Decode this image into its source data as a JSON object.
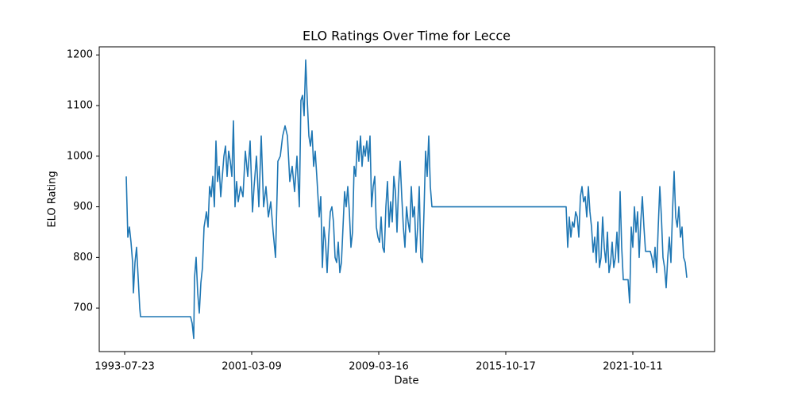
{
  "chart_data": {
    "type": "line",
    "title": "ELO Ratings Over Time for Lecce",
    "xlabel": "Date",
    "ylabel": "ELO Rating",
    "color": "#1f77b4",
    "x": [
      2,
      4,
      6,
      8,
      10,
      11,
      13,
      15,
      17,
      19,
      20,
      83,
      85,
      87,
      88,
      90,
      92,
      94,
      96,
      98,
      100,
      103,
      105,
      107,
      109,
      111,
      113,
      115,
      117,
      119,
      121,
      123,
      125,
      127,
      129,
      131,
      133,
      135,
      137,
      139,
      141,
      143,
      146,
      149,
      152,
      155,
      158,
      161,
      163,
      166,
      169,
      172,
      175,
      178,
      181,
      184,
      187,
      190,
      193,
      196,
      199,
      202,
      205,
      208,
      211,
      214,
      217,
      220,
      222,
      224,
      226,
      228,
      230,
      232,
      234,
      236,
      238,
      240,
      242,
      245,
      247,
      249,
      251,
      253,
      255,
      257,
      259,
      261,
      263,
      265,
      267,
      269,
      271,
      273,
      275,
      277,
      279,
      281,
      283,
      285,
      287,
      289,
      291,
      293,
      295,
      297,
      299,
      301,
      303,
      305,
      307,
      309,
      311,
      313,
      315,
      317,
      319,
      321,
      323,
      325,
      327,
      329,
      331,
      333,
      335,
      337,
      339,
      341,
      343,
      345,
      347,
      349,
      351,
      353,
      355,
      357,
      359,
      361,
      363,
      365,
      367,
      369,
      371,
      373,
      375,
      377,
      379,
      381,
      383,
      385,
      387,
      556,
      558,
      560,
      562,
      564,
      566,
      568,
      570,
      572,
      574,
      576,
      578,
      580,
      582,
      584,
      586,
      588,
      590,
      592,
      594,
      596,
      598,
      600,
      602,
      604,
      606,
      608,
      610,
      612,
      614,
      616,
      618,
      620,
      622,
      624,
      626,
      628,
      634,
      636,
      638,
      640,
      642,
      644,
      646,
      648,
      650,
      652,
      654,
      656,
      662,
      664,
      666,
      668,
      670,
      672,
      674,
      676,
      678,
      680,
      682,
      684,
      686,
      688,
      690,
      692,
      694,
      696,
      698,
      700,
      702,
      704,
      706,
      708
    ],
    "values": [
      960,
      840,
      860,
      830,
      790,
      730,
      790,
      820,
      760,
      700,
      683,
      683,
      670,
      640,
      760,
      800,
      730,
      690,
      750,
      780,
      860,
      890,
      860,
      940,
      920,
      960,
      900,
      1030,
      950,
      980,
      920,
      960,
      1000,
      1020,
      960,
      1010,
      990,
      960,
      1070,
      900,
      950,
      910,
      940,
      920,
      1010,
      960,
      1030,
      890,
      940,
      1000,
      900,
      1040,
      900,
      940,
      880,
      910,
      850,
      800,
      990,
      1000,
      1040,
      1060,
      1040,
      950,
      980,
      930,
      1000,
      900,
      1110,
      1120,
      1080,
      1190,
      1110,
      1040,
      1020,
      1050,
      980,
      1010,
      960,
      880,
      920,
      780,
      860,
      830,
      770,
      840,
      890,
      900,
      870,
      800,
      790,
      830,
      770,
      790,
      860,
      930,
      900,
      940,
      890,
      820,
      850,
      980,
      960,
      1030,
      990,
      1040,
      980,
      1020,
      1000,
      1030,
      990,
      1040,
      900,
      940,
      960,
      860,
      840,
      830,
      880,
      820,
      810,
      900,
      950,
      860,
      910,
      870,
      960,
      930,
      850,
      940,
      990,
      920,
      860,
      820,
      900,
      870,
      850,
      940,
      880,
      900,
      810,
      860,
      940,
      800,
      790,
      890,
      1010,
      960,
      1040,
      940,
      900,
      900,
      820,
      880,
      840,
      870,
      860,
      890,
      880,
      840,
      920,
      940,
      910,
      920,
      880,
      940,
      890,
      860,
      810,
      840,
      790,
      870,
      780,
      800,
      880,
      820,
      790,
      850,
      770,
      790,
      830,
      780,
      800,
      850,
      790,
      930,
      820,
      756,
      756,
      710,
      860,
      820,
      900,
      850,
      890,
      800,
      870,
      920,
      860,
      812,
      812,
      800,
      780,
      820,
      770,
      860,
      940,
      880,
      800,
      780,
      740,
      800,
      840,
      790,
      890,
      970,
      880,
      860,
      900,
      840,
      860,
      800,
      790,
      760
    ],
    "xlim": [
      -32,
      743
    ],
    "xticks": [
      {
        "value": 0,
        "label": "1993-07-23"
      },
      {
        "value": 160,
        "label": "2001-03-09"
      },
      {
        "value": 320,
        "label": "2009-03-16"
      },
      {
        "value": 480,
        "label": "2015-10-17"
      },
      {
        "value": 640,
        "label": "2021-10-11"
      }
    ],
    "ylim": [
      614,
      1216
    ],
    "yticks": [
      700,
      800,
      900,
      1000,
      1100,
      1200
    ]
  }
}
